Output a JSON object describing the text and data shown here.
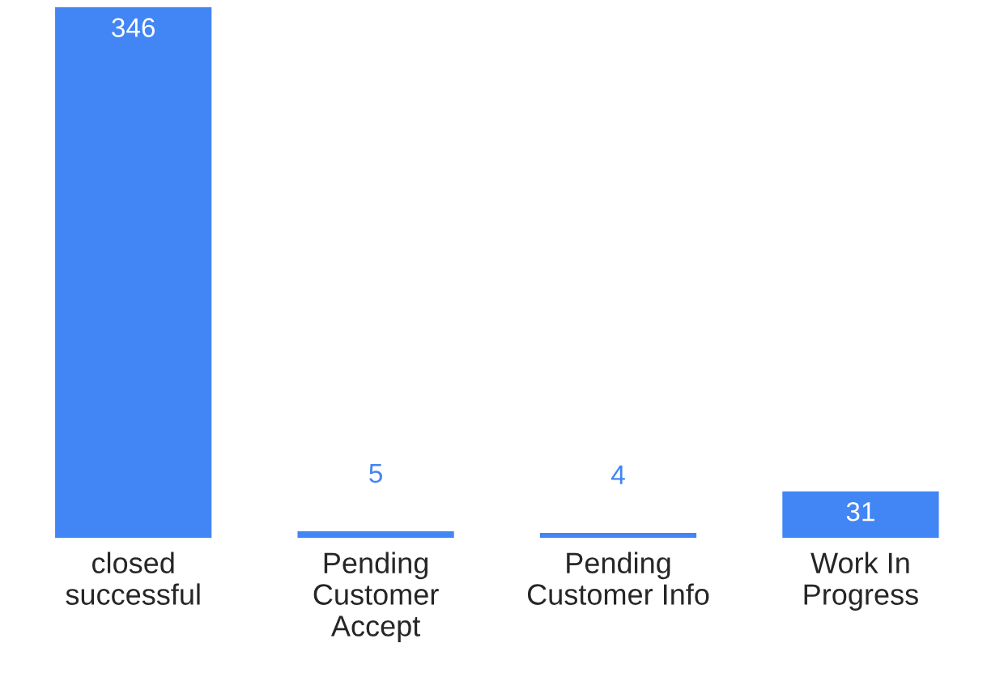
{
  "chart_data": {
    "type": "bar",
    "categories": [
      "closed\nsuccessful",
      "Pending\nCustomer\nAccept",
      "Pending\nCustomer Info",
      "Work In\nProgress"
    ],
    "values": [
      346,
      5,
      4,
      31
    ],
    "color": "#4285f4",
    "data_labels": true,
    "grid": false,
    "legend": false
  }
}
